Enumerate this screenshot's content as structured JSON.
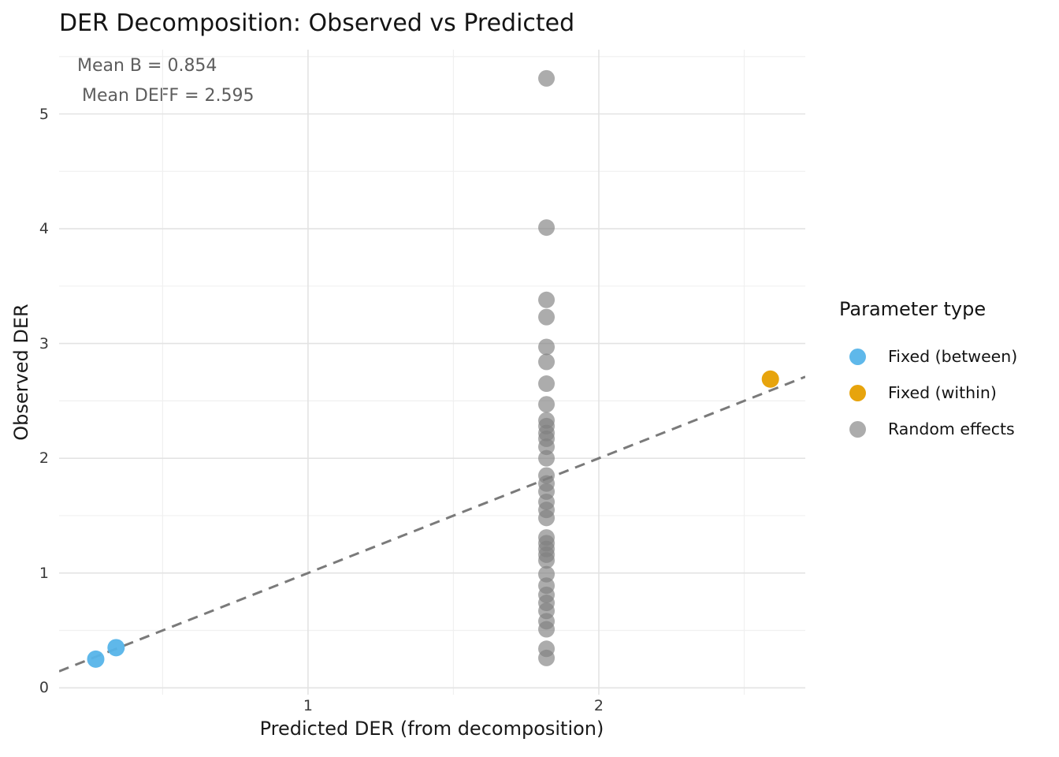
{
  "chart_data": {
    "type": "scatter",
    "title": "DER Decomposition: Observed vs Predicted",
    "xlabel": "Predicted DER (from decomposition)",
    "ylabel": "Observed DER",
    "annotations": [
      "Mean B = 0.854",
      "Mean DEFF = 2.595"
    ],
    "xlim": [
      0.144,
      2.71
    ],
    "ylim": [
      -0.06,
      5.56
    ],
    "xticks": [
      1,
      2
    ],
    "yticks": [
      0,
      1,
      2,
      3,
      4,
      5
    ],
    "x_minor_ticks": [
      0.5,
      1.5,
      2.5
    ],
    "y_minor_ticks": [
      0.5,
      1.5,
      2.5,
      3.5,
      4.5,
      5.5
    ],
    "grid": {
      "major_color": "#e3e3e3",
      "minor_color": "#f0f0f0",
      "background": "#ffffff"
    },
    "reference_line": {
      "kind": "identity",
      "x1": 0.144,
      "y1": 0.144,
      "x2": 2.71,
      "y2": 2.71,
      "color": "#7a7a7a",
      "dash": "13 9",
      "width": 3
    },
    "series": [
      {
        "name": "Fixed (between)",
        "color": "#56B4E9",
        "opacity": 0.95,
        "radius": 11,
        "points": [
          [
            0.27,
            0.25
          ],
          [
            0.34,
            0.35
          ]
        ]
      },
      {
        "name": "Fixed (within)",
        "color": "#E69F00",
        "opacity": 0.95,
        "radius": 11,
        "points": [
          [
            2.59,
            2.69
          ]
        ]
      },
      {
        "name": "Random effects",
        "color": "#808080",
        "opacity": 0.65,
        "radius": 10.5,
        "points": [
          [
            1.82,
            5.31
          ],
          [
            1.82,
            4.01
          ],
          [
            1.82,
            3.38
          ],
          [
            1.82,
            3.23
          ],
          [
            1.82,
            2.97
          ],
          [
            1.82,
            2.84
          ],
          [
            1.82,
            2.65
          ],
          [
            1.82,
            2.47
          ],
          [
            1.82,
            2.33
          ],
          [
            1.82,
            2.28
          ],
          [
            1.82,
            2.22
          ],
          [
            1.82,
            2.17
          ],
          [
            1.82,
            2.1
          ],
          [
            1.82,
            2.0
          ],
          [
            1.82,
            1.85
          ],
          [
            1.82,
            1.78
          ],
          [
            1.82,
            1.71
          ],
          [
            1.82,
            1.62
          ],
          [
            1.82,
            1.55
          ],
          [
            1.82,
            1.48
          ],
          [
            1.82,
            1.31
          ],
          [
            1.82,
            1.26
          ],
          [
            1.82,
            1.21
          ],
          [
            1.82,
            1.16
          ],
          [
            1.82,
            1.11
          ],
          [
            1.82,
            0.99
          ],
          [
            1.82,
            0.89
          ],
          [
            1.82,
            0.81
          ],
          [
            1.82,
            0.74
          ],
          [
            1.82,
            0.67
          ],
          [
            1.82,
            0.58
          ],
          [
            1.82,
            0.51
          ],
          [
            1.82,
            0.34
          ],
          [
            1.82,
            0.26
          ]
        ]
      }
    ],
    "legend": {
      "title": "Parameter type",
      "position": "right",
      "entries": [
        {
          "label": "Fixed (between)",
          "color": "#56B4E9",
          "opacity": 0.95
        },
        {
          "label": "Fixed (within)",
          "color": "#E69F00",
          "opacity": 0.95
        },
        {
          "label": "Random effects",
          "color": "#808080",
          "opacity": 0.65
        }
      ]
    }
  }
}
